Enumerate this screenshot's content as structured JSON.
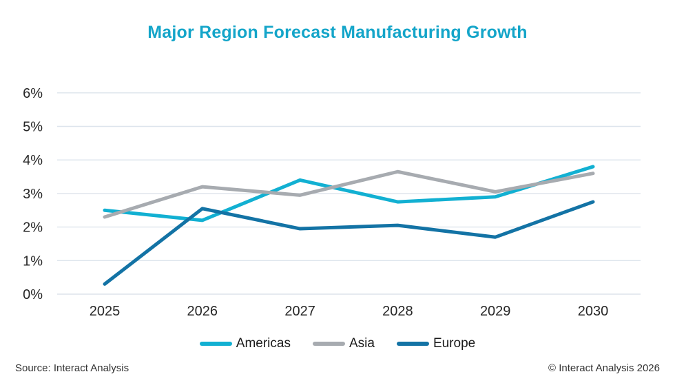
{
  "title": "Major Region Forecast Manufacturing Growth",
  "colors": {
    "title": "#14a5c9",
    "grid": "#dde4ec",
    "axis_text": "#262626",
    "footer_text": "#333333"
  },
  "chart_data": {
    "type": "line",
    "title": "Major Region Forecast Manufacturing Growth",
    "categories": [
      "2025",
      "2026",
      "2027",
      "2028",
      "2029",
      "2030"
    ],
    "series": [
      {
        "name": "Americas",
        "color": "#12b0d2",
        "values": [
          2.5,
          2.2,
          3.4,
          2.75,
          2.9,
          3.8
        ]
      },
      {
        "name": "Asia",
        "color": "#a7abb0",
        "values": [
          2.3,
          3.2,
          2.95,
          3.65,
          3.05,
          3.6
        ]
      },
      {
        "name": "Europe",
        "color": "#1373a5",
        "values": [
          0.3,
          2.55,
          1.95,
          2.05,
          1.7,
          2.75
        ]
      }
    ],
    "xlabel": "",
    "ylabel": "",
    "ylim": [
      0,
      6
    ],
    "y_tick_labels": [
      "0%",
      "1%",
      "2%",
      "3%",
      "4%",
      "5%",
      "6%"
    ],
    "grid": true,
    "legend_position": "bottom"
  },
  "legend": {
    "items": [
      "Americas",
      "Asia",
      "Europe"
    ]
  },
  "footer": {
    "source": "Source: Interact Analysis",
    "copyright": "© Interact Analysis 2026"
  }
}
